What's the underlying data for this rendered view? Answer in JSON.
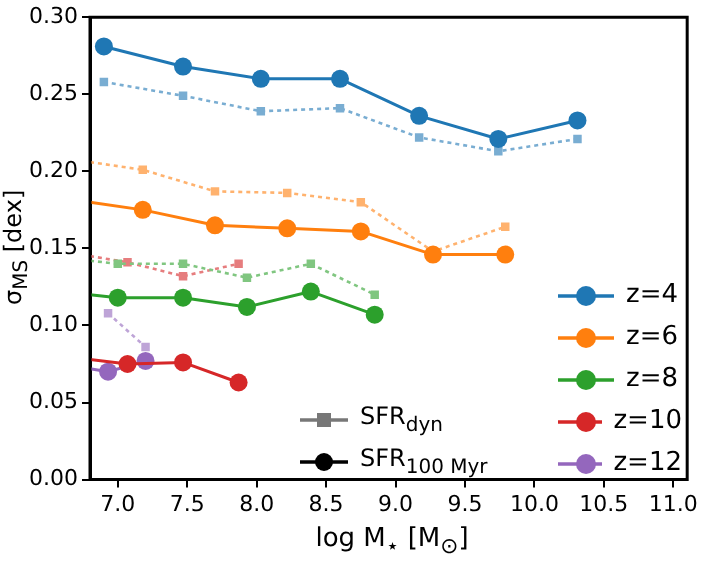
{
  "chart_data": {
    "type": "line",
    "xlabel": "log  M$_{⋆}$  [M$_{⊙}$]",
    "ylabel": "σ$_{MS}$ [dex]",
    "xlim": [
      6.8,
      11.1
    ],
    "ylim": [
      0,
      0.3
    ],
    "xticks": [
      {
        "value": 7,
        "label": "7.0"
      },
      {
        "value": 7.5,
        "label": "7.5"
      },
      {
        "value": 8,
        "label": "8.0"
      },
      {
        "value": 8.5,
        "label": "8.5"
      },
      {
        "value": 9,
        "label": "9.0"
      },
      {
        "value": 9.5,
        "label": "9.5"
      },
      {
        "value": 10,
        "label": "10.0"
      },
      {
        "value": 10.5,
        "label": "10.5"
      },
      {
        "value": 11,
        "label": "11.0"
      }
    ],
    "yticks": [
      {
        "value": 0,
        "label": "0.00"
      },
      {
        "value": 0.05,
        "label": "0.05"
      },
      {
        "value": 0.1,
        "label": "0.10"
      },
      {
        "value": 0.15,
        "label": "0.15"
      },
      {
        "value": 0.2,
        "label": "0.20"
      },
      {
        "value": 0.25,
        "label": "0.25"
      },
      {
        "value": 0.3,
        "label": "0.30"
      }
    ],
    "grid": false,
    "legend": "bottom right",
    "annotations": [
      "SFR$_{dyn}$",
      "SFR$_{100 Myr}$"
    ],
    "series": [
      {
        "name": "z=4",
        "color": "#1f77b4",
        "marker": "circle",
        "line_style": "solid",
        "x": [
          6.9,
          7.47,
          8.03,
          8.6,
          9.17,
          9.74,
          10.31
        ],
        "values": [
          0.281,
          0.268,
          0.26,
          0.26,
          0.236,
          0.221,
          0.233
        ]
      },
      {
        "color": "#79add2",
        "marker": "square",
        "line_style": "dotted",
        "x": [
          6.9,
          7.47,
          8.03,
          8.6,
          9.17,
          9.74,
          10.31
        ],
        "values": [
          0.258,
          0.249,
          0.239,
          0.241,
          0.222,
          0.213,
          0.221
        ]
      },
      {
        "name": "z=6",
        "color": "#ff7f0e",
        "marker": "circle",
        "line_style": "solid",
        "x": [
          6.8,
          7.18,
          7.7,
          8.22,
          8.75,
          9.27,
          9.79
        ],
        "values": [
          0.18,
          0.175,
          0.165,
          0.163,
          0.161,
          0.146,
          0.146
        ]
      },
      {
        "color": "#ffb26e",
        "marker": "square",
        "line_style": "dotted",
        "x": [
          6.8,
          7.18,
          7.7,
          8.22,
          8.75,
          9.27,
          9.79
        ],
        "values": [
          0.206,
          0.201,
          0.187,
          0.186,
          0.18,
          0.148,
          0.164
        ]
      },
      {
        "name": "z=8",
        "color": "#2ca02c",
        "marker": "circle",
        "line_style": "solid",
        "x": [
          6.8,
          7.0,
          7.47,
          7.93,
          8.39,
          8.85
        ],
        "values": [
          0.12,
          0.118,
          0.118,
          0.112,
          0.122,
          0.107
        ]
      },
      {
        "color": "#80c680",
        "marker": "square",
        "line_style": "dotted",
        "x": [
          6.8,
          7.0,
          7.47,
          7.93,
          8.39,
          8.85
        ],
        "values": [
          0.142,
          0.14,
          0.14,
          0.131,
          0.14,
          0.12
        ]
      },
      {
        "name": "z=10",
        "color": "#d62728",
        "marker": "circle",
        "line_style": "solid",
        "x": [
          6.8,
          7.07,
          7.47,
          7.87
        ],
        "values": [
          0.078,
          0.075,
          0.076,
          0.063
        ]
      },
      {
        "color": "#e67d7e",
        "marker": "square",
        "line_style": "dotted",
        "x": [
          6.8,
          7.07,
          7.47,
          7.87
        ],
        "values": [
          0.145,
          0.141,
          0.132,
          0.14
        ]
      },
      {
        "name": "z=12",
        "color": "#9467bd",
        "marker": "circle",
        "line_style": "solid",
        "x": [
          6.8,
          6.93,
          7.2
        ],
        "values": [
          0.072,
          0.07,
          0.077
        ]
      },
      {
        "color": "#bea4d7",
        "marker": "square",
        "line_style": "dotted",
        "x": [
          6.93,
          7.2
        ],
        "values": [
          0.108,
          0.086
        ]
      }
    ]
  }
}
